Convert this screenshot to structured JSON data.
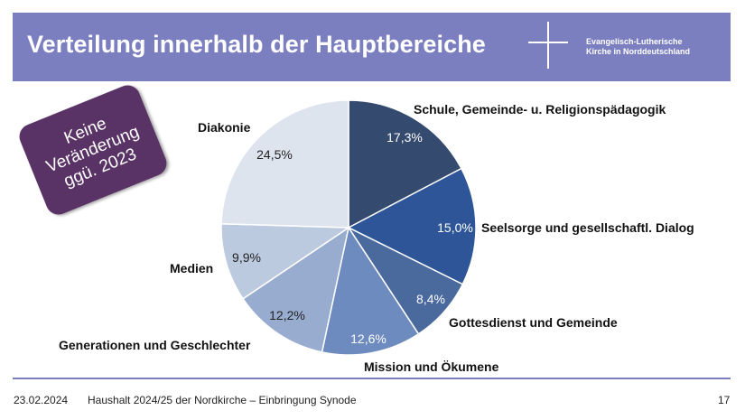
{
  "header": {
    "title": "Verteilung innerhalb der Hauptbereiche",
    "org_line1": "Evangelisch-Lutherische",
    "org_line2": "Kirche in Norddeutschland",
    "bar_color": "#7b7fc0",
    "logo_icon": "cross-icon"
  },
  "badge": {
    "text": "Keine\nVeränderung\nggü. 2023",
    "color": "#5a3366"
  },
  "chart_data": {
    "type": "pie",
    "title": "",
    "start": "12 o'clock, clockwise",
    "slices": [
      {
        "label": "Schule, Gemeinde- u. Religionspädagogik",
        "value": 17.3,
        "value_label": "17,3%",
        "color": "#354a6f"
      },
      {
        "label": "Seelsorge und gesellschaftl. Dialog",
        "value": 15.0,
        "value_label": "15,0%",
        "color": "#2e5597"
      },
      {
        "label": "Gottesdienst und Gemeinde",
        "value": 8.4,
        "value_label": "8,4%",
        "color": "#4a6a9e"
      },
      {
        "label": "Mission und Ökumene",
        "value": 12.6,
        "value_label": "12,6%",
        "color": "#6d8bbf"
      },
      {
        "label": "Generationen und Geschlechter",
        "value": 12.2,
        "value_label": "12,2%",
        "color": "#98acd0"
      },
      {
        "label": "Medien",
        "value": 9.9,
        "value_label": "9,9%",
        "color": "#bccae0"
      },
      {
        "label": "Diakonie",
        "value": 24.5,
        "value_label": "24,5%",
        "color": "#dde4ee"
      }
    ]
  },
  "footer": {
    "date": "23.02.2024",
    "subject": "Haushalt 2024/25 der Nordkirche – Einbringung Synode",
    "page": "17"
  }
}
